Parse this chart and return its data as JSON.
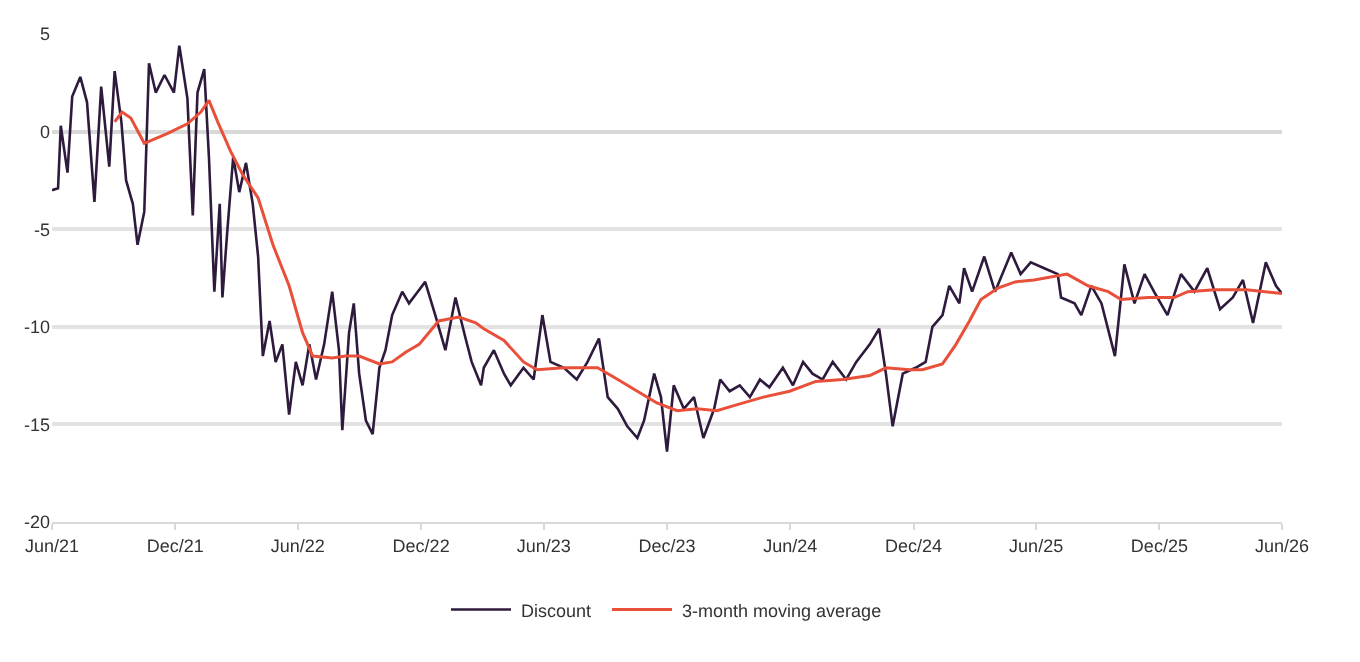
{
  "chart_data": {
    "type": "line",
    "xlim": [
      "2021-06-01",
      "2026-06-01"
    ],
    "xticks": [
      {
        "value": "2021-06-01",
        "label": "Jun/21"
      },
      {
        "value": "2021-12-01",
        "label": "Dec/21"
      },
      {
        "value": "2022-06-01",
        "label": "Jun/22"
      },
      {
        "value": "2022-12-01",
        "label": "Dec/22"
      },
      {
        "value": "2023-06-01",
        "label": "Jun/23"
      },
      {
        "value": "2023-12-01",
        "label": "Dec/23"
      },
      {
        "value": "2024-06-01",
        "label": "Jun/24"
      },
      {
        "value": "2024-12-01",
        "label": "Dec/24"
      },
      {
        "value": "2025-06-01",
        "label": "Jun/25"
      },
      {
        "value": "2025-12-01",
        "label": "Dec/25"
      },
      {
        "value": "2026-06-01",
        "label": "Jun/26"
      }
    ],
    "ylim": [
      -20,
      5
    ],
    "yticks": [
      -20,
      -15,
      -10,
      -5,
      0,
      5
    ],
    "grid": "y",
    "legend": "bottom",
    "line_style": "solid",
    "marker": "none",
    "series": [
      {
        "name": "Discount",
        "color": "#2e1a3c",
        "x": [
          "2021-06-01",
          "2021-06-10",
          "2021-06-14",
          "2021-06-24",
          "2021-07-01",
          "2021-07-13",
          "2021-07-23",
          "2021-08-03",
          "2021-08-13",
          "2021-08-25",
          "2021-09-02",
          "2021-09-12",
          "2021-09-19",
          "2021-09-29",
          "2021-10-06",
          "2021-10-16",
          "2021-10-23",
          "2021-11-02",
          "2021-11-15",
          "2021-11-29",
          "2021-12-07",
          "2021-12-19",
          "2021-12-27",
          "2022-01-03",
          "2022-01-13",
          "2022-01-20",
          "2022-01-28",
          "2022-02-05",
          "2022-02-09",
          "2022-02-16",
          "2022-02-25",
          "2022-03-06",
          "2022-03-16",
          "2022-03-26",
          "2022-04-03",
          "2022-04-10",
          "2022-04-20",
          "2022-04-29",
          "2022-05-09",
          "2022-05-19",
          "2022-05-29",
          "2022-06-08",
          "2022-06-18",
          "2022-06-28",
          "2022-07-10",
          "2022-07-22",
          "2022-08-01",
          "2022-08-06",
          "2022-08-16",
          "2022-08-23",
          "2022-08-31",
          "2022-09-10",
          "2022-09-20",
          "2022-09-30",
          "2022-10-09",
          "2022-10-19",
          "2022-11-03",
          "2022-11-13",
          "2022-11-26",
          "2022-12-07",
          "2022-12-22",
          "2023-01-06",
          "2023-01-21",
          "2023-02-05",
          "2023-02-14",
          "2023-02-28",
          "2023-03-04",
          "2023-03-19",
          "2023-04-03",
          "2023-04-13",
          "2023-05-02",
          "2023-05-17",
          "2023-05-30",
          "2023-06-11",
          "2023-07-01",
          "2023-07-20",
          "2023-08-05",
          "2023-08-22",
          "2023-09-04",
          "2023-09-19",
          "2023-10-03",
          "2023-10-18",
          "2023-10-28",
          "2023-11-12",
          "2023-11-22",
          "2023-12-01",
          "2023-12-11",
          "2023-12-26",
          "2024-01-10",
          "2024-01-24",
          "2024-02-09",
          "2024-02-18",
          "2024-03-03",
          "2024-03-18",
          "2024-04-02",
          "2024-04-17",
          "2024-05-01",
          "2024-05-21",
          "2024-06-05",
          "2024-06-20",
          "2024-07-04",
          "2024-07-19",
          "2024-08-03",
          "2024-08-23",
          "2024-09-07",
          "2024-09-27",
          "2024-10-11",
          "2024-10-21",
          "2024-10-31",
          "2024-11-15",
          "2024-12-04",
          "2024-12-19",
          "2024-12-29",
          "2025-01-13",
          "2025-01-23",
          "2025-02-07",
          "2025-02-14",
          "2025-02-26",
          "2025-03-16",
          "2025-04-01",
          "2025-04-25",
          "2025-05-09",
          "2025-05-24",
          "2025-06-13",
          "2025-07-03",
          "2025-07-08",
          "2025-07-28",
          "2025-08-07",
          "2025-08-22",
          "2025-09-06",
          "2025-09-26",
          "2025-10-10",
          "2025-10-25",
          "2025-11-09",
          "2025-11-23",
          "2025-12-13",
          "2026-01-02",
          "2026-01-22",
          "2026-02-10",
          "2026-03-01",
          "2026-03-20",
          "2026-04-04",
          "2026-04-19",
          "2026-05-08",
          "2026-05-23",
          "2026-06-01"
        ],
        "values": [
          -3.0,
          -2.9,
          0.3,
          -2.1,
          1.8,
          2.8,
          1.5,
          -3.6,
          2.3,
          -1.8,
          3.1,
          0.5,
          -2.5,
          -3.7,
          -5.8,
          -4.1,
          3.5,
          2.0,
          2.9,
          2.0,
          4.4,
          1.7,
          -4.3,
          2.0,
          3.2,
          -1.3,
          -8.2,
          -3.7,
          -8.5,
          -5.2,
          -1.3,
          -3.1,
          -1.6,
          -3.7,
          -6.4,
          -11.5,
          -9.7,
          -11.8,
          -10.9,
          -14.5,
          -11.8,
          -13.0,
          -10.9,
          -12.7,
          -10.9,
          -8.2,
          -11.2,
          -15.3,
          -10.3,
          -8.8,
          -12.4,
          -14.8,
          -15.5,
          -12.1,
          -11.2,
          -9.4,
          -8.2,
          -8.8,
          -8.2,
          -7.7,
          -9.4,
          -11.2,
          -8.5,
          -10.6,
          -11.8,
          -13.0,
          -12.1,
          -11.2,
          -12.4,
          -13.0,
          -12.1,
          -12.7,
          -9.4,
          -11.8,
          -12.1,
          -12.7,
          -11.8,
          -10.6,
          -13.6,
          -14.2,
          -15.1,
          -15.7,
          -14.8,
          -12.4,
          -13.6,
          -16.4,
          -13.0,
          -14.2,
          -13.6,
          -15.7,
          -14.2,
          -12.7,
          -13.3,
          -13.0,
          -13.6,
          -12.7,
          -13.1,
          -12.1,
          -13.0,
          -11.8,
          -12.4,
          -12.7,
          -11.8,
          -12.7,
          -11.8,
          -10.9,
          -10.1,
          -12.4,
          -15.1,
          -12.4,
          -12.1,
          -11.8,
          -10.0,
          -9.4,
          -7.9,
          -8.8,
          -7.0,
          -8.2,
          -6.4,
          -8.2,
          -6.2,
          -7.3,
          -6.7,
          -7.0,
          -7.3,
          -8.5,
          -8.8,
          -9.4,
          -7.9,
          -8.8,
          -11.5,
          -6.8,
          -8.8,
          -7.3,
          -8.2,
          -9.4,
          -7.3,
          -8.2,
          -7.0,
          -9.1,
          -8.5,
          -7.6,
          -9.8,
          -6.7,
          -7.9,
          -8.3
        ]
      },
      {
        "name": "3-month moving average",
        "color": "#e8503a",
        "x": [
          "2021-09-02",
          "2021-09-13",
          "2021-09-26",
          "2021-10-16",
          "2021-11-19",
          "2021-12-19",
          "2022-01-08",
          "2022-01-20",
          "2022-02-02",
          "2022-02-21",
          "2022-03-11",
          "2022-04-03",
          "2022-04-25",
          "2022-05-19",
          "2022-06-08",
          "2022-06-23",
          "2022-07-22",
          "2022-08-11",
          "2022-08-31",
          "2022-09-30",
          "2022-10-19",
          "2022-11-08",
          "2022-11-28",
          "2022-12-27",
          "2023-01-26",
          "2023-02-20",
          "2023-03-04",
          "2023-04-03",
          "2023-05-02",
          "2023-05-22",
          "2023-07-01",
          "2023-08-20",
          "2023-09-19",
          "2023-10-18",
          "2023-11-16",
          "2023-12-16",
          "2024-01-15",
          "2024-02-13",
          "2024-03-13",
          "2024-04-22",
          "2024-05-31",
          "2024-07-09",
          "2024-08-18",
          "2024-09-27",
          "2024-10-21",
          "2024-11-25",
          "2024-12-14",
          "2025-01-13",
          "2025-02-02",
          "2025-02-22",
          "2025-03-11",
          "2025-04-06",
          "2025-05-01",
          "2025-05-29",
          "2025-07-17",
          "2025-08-17",
          "2025-09-16",
          "2025-10-05",
          "2025-11-14",
          "2025-12-23",
          "2026-01-12",
          "2026-02-21",
          "2026-04-09",
          "2026-06-01"
        ],
        "values": [
          0.5,
          1.0,
          0.7,
          -0.6,
          -0.1,
          0.4,
          1.0,
          1.6,
          0.5,
          -1.0,
          -2.2,
          -3.4,
          -5.8,
          -7.9,
          -10.3,
          -11.5,
          -11.6,
          -11.5,
          -11.5,
          -11.9,
          -11.8,
          -11.3,
          -10.9,
          -9.7,
          -9.5,
          -9.8,
          -10.1,
          -10.7,
          -11.8,
          -12.2,
          -12.1,
          -12.1,
          -12.7,
          -13.3,
          -13.9,
          -14.3,
          -14.2,
          -14.3,
          -14.0,
          -13.6,
          -13.3,
          -12.8,
          -12.7,
          -12.5,
          -12.1,
          -12.2,
          -12.2,
          -11.9,
          -10.9,
          -9.7,
          -8.6,
          -8.0,
          -7.7,
          -7.6,
          -7.3,
          -7.9,
          -8.2,
          -8.6,
          -8.5,
          -8.5,
          -8.2,
          -8.1,
          -8.1,
          -8.3
        ]
      }
    ]
  }
}
